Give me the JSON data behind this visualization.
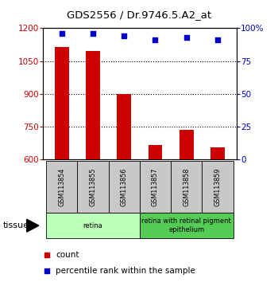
{
  "title": "GDS2556 / Dr.9746.5.A2_at",
  "samples": [
    "GSM113854",
    "GSM113855",
    "GSM113856",
    "GSM113857",
    "GSM113858",
    "GSM113859"
  ],
  "counts": [
    1115,
    1095,
    900,
    665,
    735,
    655
  ],
  "percentile_ranks": [
    96,
    96,
    94,
    91,
    93,
    91
  ],
  "ylim_left": [
    600,
    1200
  ],
  "ylim_right": [
    0,
    100
  ],
  "yticks_left": [
    600,
    750,
    900,
    1050,
    1200
  ],
  "yticks_right": [
    0,
    25,
    50,
    75,
    100
  ],
  "ytick_labels_right": [
    "0",
    "25",
    "50",
    "75",
    "100%"
  ],
  "bar_color": "#cc0000",
  "dot_color": "#0000cc",
  "bar_bottom": 600,
  "tissue_groups": [
    {
      "label": "retina",
      "samples": 3,
      "color": "#bbffbb"
    },
    {
      "label": "retina with retinal pigment\nepithelium",
      "samples": 3,
      "color": "#55cc55"
    }
  ],
  "sample_box_color": "#c8c8c8",
  "legend_count_label": "count",
  "legend_pct_label": "percentile rank within the sample",
  "tissue_label": "tissue",
  "left_tick_color": "#cc0000",
  "right_tick_color": "#0000cc"
}
